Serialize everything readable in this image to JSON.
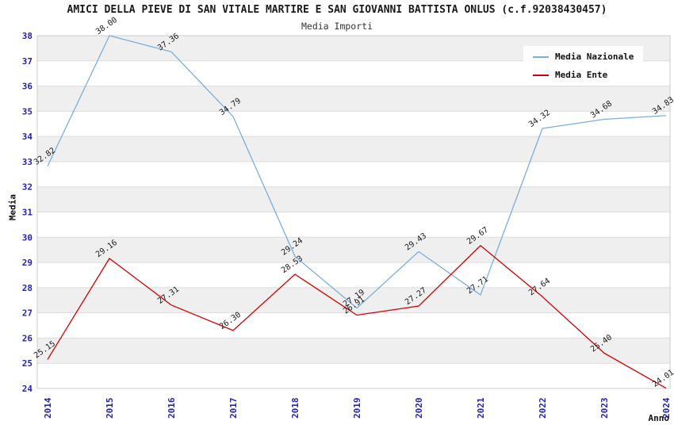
{
  "chart_data": {
    "type": "line",
    "title": "AMICI DELLA PIEVE DI SAN VITALE MARTIRE E SAN GIOVANNI BATTISTA ONLUS (c.f.92038430457)",
    "subtitle": "Media Importi",
    "xlabel": "Anno",
    "ylabel": "Media",
    "ylim": [
      24,
      38
    ],
    "ytick_step": 1,
    "grid": "horizontal-alternating-bands",
    "legend_position": "top-right",
    "x": [
      "2014",
      "2015",
      "2016",
      "2017",
      "2018",
      "2019",
      "2020",
      "2021",
      "2022",
      "2023",
      "2024"
    ],
    "series": [
      {
        "name": "Media Nazionale",
        "color": "#7aafdc",
        "values": [
          32.82,
          38.0,
          37.36,
          34.79,
          29.24,
          27.19,
          29.43,
          27.71,
          34.32,
          34.68,
          34.83
        ]
      },
      {
        "name": "Media Ente",
        "color": "#d40000",
        "values": [
          25.15,
          29.16,
          27.31,
          26.3,
          28.53,
          26.91,
          27.27,
          29.67,
          27.64,
          25.4,
          24.01
        ]
      }
    ],
    "colors": {
      "tick_label": "#2323b4",
      "band_gray": "#efefef",
      "band_white": "#ffffff",
      "gridline": "#dddddd",
      "point_label": "#1a1a1a"
    }
  }
}
